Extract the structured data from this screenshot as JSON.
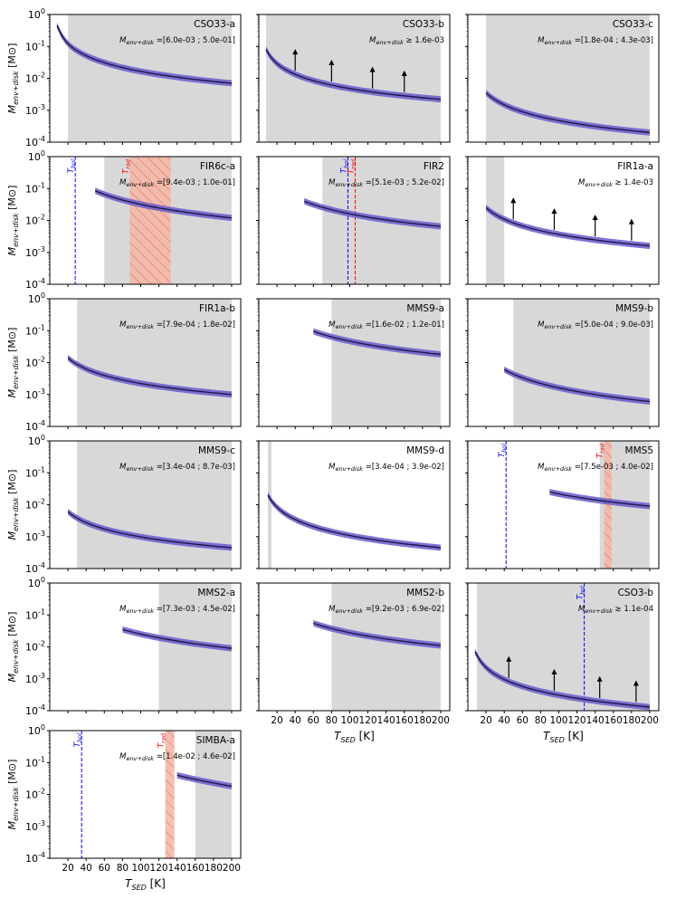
{
  "figure": {
    "ylabel": "M_env+disk [M⊙]",
    "xlabel": "T_SED [K]",
    "mass_prefix": "M",
    "mass_sub": "env+disk",
    "xlabel_main": "T",
    "xlabel_sub": "SED",
    "xlabel_unit": "[K]",
    "ylabel_unit": "[M⊙]",
    "tbol_label": "T_bol",
    "trad_label": "T_rad",
    "colors": {
      "shade": "#d8d8d8",
      "band": "#6a5acd",
      "line": "#1a1a4a",
      "tbol": "#0000ff",
      "trad": "#ff0000",
      "trad_fill": "#f4b8a8"
    }
  },
  "chart_data": [
    {
      "name": "CSO33-a",
      "type": "area",
      "xlim": [
        0,
        210
      ],
      "ylim": [
        0.0001,
        1
      ],
      "yscale": "log",
      "xticks": [],
      "yticks": [
        "10^0",
        "10^-1",
        "10^-2",
        "10^-3",
        "10^-4"
      ],
      "annotation": "M_env+disk =[6.0e-03 ; 5.0e-01]",
      "shade": [
        20,
        200
      ],
      "curve": {
        "x": [
          8,
          20,
          200
        ],
        "y": [
          0.45,
          0.12,
          0.007
        ]
      },
      "arrows": [],
      "tbol": null,
      "trad": null
    },
    {
      "name": "CSO33-b",
      "type": "area",
      "xlim": [
        0,
        210
      ],
      "ylim": [
        0.0001,
        1
      ],
      "yscale": "log",
      "xticks": [],
      "yticks": [],
      "annotation": "M_env+disk ≳ 1.6e-03",
      "shade": [
        8,
        200
      ],
      "curve": {
        "x": [
          8,
          200
        ],
        "y": [
          0.08,
          0.0022
        ]
      },
      "arrows": [
        40,
        80,
        125,
        160
      ],
      "tbol": null,
      "trad": null
    },
    {
      "name": "CSO33-c",
      "type": "area",
      "xlim": [
        0,
        210
      ],
      "ylim": [
        0.0001,
        1
      ],
      "yscale": "log",
      "xticks": [],
      "yticks": [],
      "annotation": "M_env+disk =[1.8e-04 ; 4.3e-03]",
      "shade": [
        20,
        200
      ],
      "curve": {
        "x": [
          20,
          200
        ],
        "y": [
          0.0035,
          0.0002
        ]
      },
      "arrows": [],
      "tbol": null,
      "trad": null
    },
    {
      "name": "FIR6c-a",
      "type": "area",
      "xlim": [
        0,
        210
      ],
      "ylim": [
        0.0001,
        1
      ],
      "yscale": "log",
      "xticks": [],
      "yticks": [
        "10^0",
        "10^-1",
        "10^-2",
        "10^-3",
        "10^-4"
      ],
      "annotation": "M_env+disk =[9.4e-03 ; 1.0e-01]",
      "shade": [
        60,
        200
      ],
      "curve": {
        "x": [
          50,
          200
        ],
        "y": [
          0.085,
          0.012
        ]
      },
      "arrows": [],
      "tbol": 28,
      "trad": [
        88,
        133
      ]
    },
    {
      "name": "FIR2",
      "type": "area",
      "xlim": [
        0,
        210
      ],
      "ylim": [
        0.0001,
        1
      ],
      "yscale": "log",
      "xticks": [],
      "yticks": [],
      "annotation": "M_env+disk =[5.1e-03 ; 5.2e-02]",
      "shade": [
        70,
        200
      ],
      "curve": {
        "x": [
          50,
          200
        ],
        "y": [
          0.04,
          0.0065
        ]
      },
      "arrows": [],
      "tbol": 98,
      "trad": 106
    },
    {
      "name": "FIR1a-a",
      "type": "area",
      "xlim": [
        0,
        210
      ],
      "ylim": [
        0.0001,
        1
      ],
      "yscale": "log",
      "xticks": [],
      "yticks": [],
      "annotation": "M_env+disk ≳ 1.4e-03",
      "shade": [
        20,
        40
      ],
      "curve": {
        "x": [
          20,
          200
        ],
        "y": [
          0.025,
          0.0016
        ]
      },
      "arrows": [
        50,
        95,
        140,
        180
      ],
      "tbol": null,
      "trad": null
    },
    {
      "name": "FIR1a-b",
      "type": "area",
      "xlim": [
        0,
        210
      ],
      "ylim": [
        0.0001,
        1
      ],
      "yscale": "log",
      "xticks": [],
      "yticks": [
        "10^0",
        "10^-1",
        "10^-2",
        "10^-3",
        "10^-4"
      ],
      "annotation": "M_env+disk =[7.9e-04 ; 1.8e-02]",
      "shade": [
        30,
        200
      ],
      "curve": {
        "x": [
          20,
          200
        ],
        "y": [
          0.014,
          0.001
        ]
      },
      "arrows": [],
      "tbol": null,
      "trad": null
    },
    {
      "name": "MMS9-a",
      "type": "area",
      "xlim": [
        0,
        210
      ],
      "ylim": [
        0.0001,
        1
      ],
      "yscale": "log",
      "xticks": [],
      "yticks": [],
      "annotation": "M_env+disk =[1.6e-02 ; 1.2e-01]",
      "shade": [
        80,
        200
      ],
      "curve": {
        "x": [
          60,
          200
        ],
        "y": [
          0.095,
          0.018
        ]
      },
      "arrows": [],
      "tbol": null,
      "trad": null
    },
    {
      "name": "MMS9-b",
      "type": "area",
      "xlim": [
        0,
        210
      ],
      "ylim": [
        0.0001,
        1
      ],
      "yscale": "log",
      "xticks": [],
      "yticks": [],
      "annotation": "M_env+disk =[5.0e-04 ; 9.0e-03]",
      "shade": [
        50,
        200
      ],
      "curve": {
        "x": [
          40,
          200
        ],
        "y": [
          0.006,
          0.0006
        ]
      },
      "arrows": [],
      "tbol": null,
      "trad": null
    },
    {
      "name": "MMS9-c",
      "type": "area",
      "xlim": [
        0,
        210
      ],
      "ylim": [
        0.0001,
        1
      ],
      "yscale": "log",
      "xticks": [],
      "yticks": [
        "10^0",
        "10^-1",
        "10^-2",
        "10^-3",
        "10^-4"
      ],
      "annotation": "M_env+disk =[3.4e-04 ; 8.7e-03]",
      "shade": [
        30,
        200
      ],
      "curve": {
        "x": [
          20,
          200
        ],
        "y": [
          0.006,
          0.00045
        ]
      },
      "arrows": [],
      "tbol": null,
      "trad": null
    },
    {
      "name": "MMS9-d",
      "type": "area",
      "xlim": [
        0,
        210
      ],
      "ylim": [
        0.0001,
        1
      ],
      "yscale": "log",
      "xticks": [],
      "yticks": [],
      "annotation": "M_env+disk =[3.4e-04 ; 3.9e-02]",
      "shade": [
        10,
        14
      ],
      "curve": {
        "x": [
          10,
          200
        ],
        "y": [
          0.02,
          0.00045
        ]
      },
      "arrows": [],
      "tbol": null,
      "trad": null
    },
    {
      "name": "MMS5",
      "type": "area",
      "xlim": [
        0,
        210
      ],
      "ylim": [
        0.0001,
        1
      ],
      "yscale": "log",
      "xticks": [],
      "yticks": [],
      "annotation": "M_env+disk =[7.5e-03 ; 4.0e-02]",
      "shade": [
        145,
        200
      ],
      "curve": {
        "x": [
          90,
          200
        ],
        "y": [
          0.025,
          0.009
        ]
      },
      "arrows": [],
      "tbol": 42,
      "trad": [
        150,
        158
      ]
    },
    {
      "name": "MMS2-a",
      "type": "area",
      "xlim": [
        0,
        210
      ],
      "ylim": [
        0.0001,
        1
      ],
      "yscale": "log",
      "xticks": [],
      "yticks": [
        "10^0",
        "10^-1",
        "10^-2",
        "10^-3",
        "10^-4"
      ],
      "annotation": "M_env+disk =[7.3e-03 ; 4.5e-02]",
      "shade": [
        120,
        200
      ],
      "curve": {
        "x": [
          80,
          200
        ],
        "y": [
          0.035,
          0.009
        ]
      },
      "arrows": [],
      "tbol": null,
      "trad": null
    },
    {
      "name": "MMS2-b",
      "type": "area",
      "xlim": [
        0,
        210
      ],
      "ylim": [
        0.0001,
        1
      ],
      "yscale": "log",
      "xticks": [
        "20",
        "40",
        "60",
        "80",
        "100",
        "120",
        "140",
        "160",
        "180",
        "200"
      ],
      "yticks": [],
      "annotation": "M_env+disk =[9.2e-03 ; 6.9e-02]",
      "shade": [
        80,
        200
      ],
      "curve": {
        "x": [
          60,
          200
        ],
        "y": [
          0.055,
          0.011
        ]
      },
      "arrows": [],
      "tbol": null,
      "trad": null
    },
    {
      "name": "CSO3-b",
      "type": "area",
      "xlim": [
        0,
        210
      ],
      "ylim": [
        0.0001,
        1
      ],
      "yscale": "log",
      "xticks": [
        "20",
        "40",
        "60",
        "80",
        "100",
        "120",
        "140",
        "160",
        "180",
        "200"
      ],
      "yticks": [],
      "annotation": "M_env+disk ≳ 1.1e-04",
      "shade": [
        10,
        200
      ],
      "curve": {
        "x": [
          8,
          200
        ],
        "y": [
          0.007,
          0.00013
        ]
      },
      "arrows": [
        45,
        95,
        145,
        185
      ],
      "tbol": 128,
      "trad": null
    },
    {
      "name": "SIMBA-a",
      "type": "area",
      "xlim": [
        0,
        210
      ],
      "ylim": [
        0.0001,
        1
      ],
      "yscale": "log",
      "xticks": [
        "20",
        "40",
        "60",
        "80",
        "100",
        "120",
        "140",
        "160",
        "180",
        "200"
      ],
      "yticks": [
        "10^0",
        "10^-1",
        "10^-2",
        "10^-3",
        "10^-4"
      ],
      "annotation": "M_env+disk =[1.4e-02 ; 4.6e-02]",
      "shade": [
        160,
        200
      ],
      "curve": {
        "x": [
          140,
          200
        ],
        "y": [
          0.04,
          0.018
        ]
      },
      "arrows": [],
      "tbol": 35,
      "trad": [
        127,
        137
      ]
    }
  ]
}
